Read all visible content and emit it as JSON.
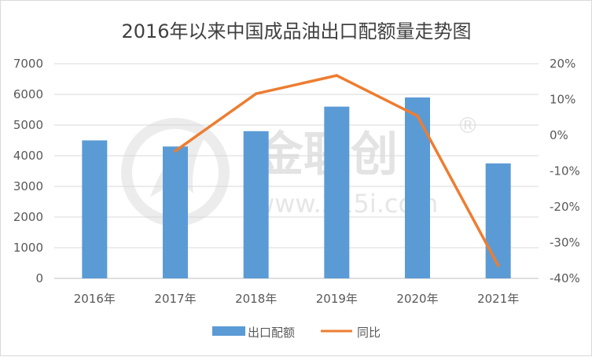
{
  "chart_data": {
    "type": "bar+line",
    "title": "2016年以来中国成品油出口配额量走势图",
    "categories": [
      "2016年",
      "2017年",
      "2018年",
      "2019年",
      "2020年",
      "2021年"
    ],
    "series": [
      {
        "name": "出口配额",
        "type": "bar",
        "axis": "left",
        "color": "#5b9bd5",
        "values": [
          4500,
          4300,
          4800,
          5600,
          5900,
          3750
        ]
      },
      {
        "name": "同比",
        "type": "line",
        "axis": "right",
        "color": "#ed7d31",
        "values": [
          null,
          -4.4,
          11.6,
          16.7,
          5.4,
          -36.4
        ]
      }
    ],
    "ylim": [
      0,
      7000
    ],
    "y_ticks": [
      "0",
      "1000",
      "2000",
      "3000",
      "4000",
      "5000",
      "6000",
      "7000"
    ],
    "y2lim": [
      -40,
      20
    ],
    "y2_ticks": [
      "-40%",
      "-30%",
      "-20%",
      "-10%",
      "0%",
      "10%",
      "20%"
    ],
    "grid": true,
    "legend_position": "bottom"
  },
  "watermark": {
    "brand": "金联创",
    "registered": "®",
    "url": "www.315i.com"
  }
}
